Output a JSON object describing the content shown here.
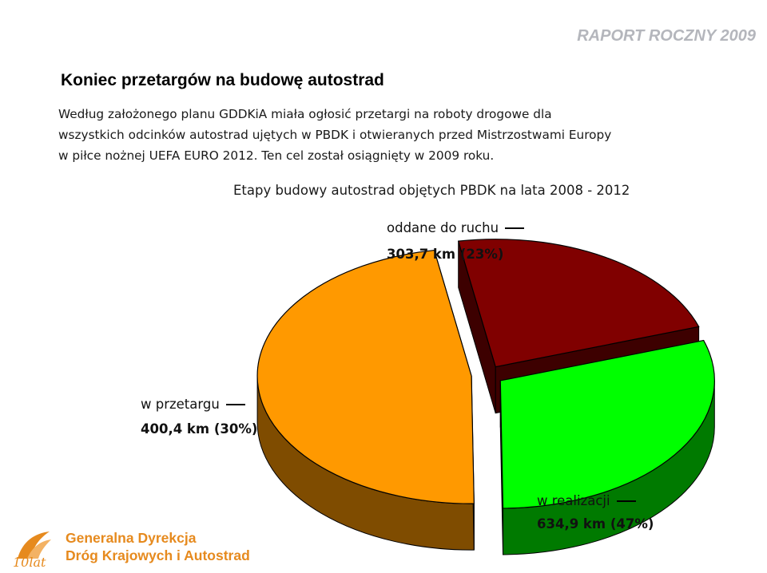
{
  "header": {
    "report_tag": "RAPORT ROCZNY 2009"
  },
  "heading": "Koniec przetargów na budowę autostrad",
  "paragraph_lines": [
    "Według założonego planu GDDKiA miała ogłosić przetargi na roboty drogowe dla",
    "wszystkich odcinków autostrad ujętych w PBDK i otwieranych przed Mistrzostwami Europy",
    "w piłce nożnej UEFA EURO 2012. Ten cel został osiągnięty w 2009 roku."
  ],
  "chart_data": {
    "type": "pie",
    "title": "Etapy budowy autostrad objętych PBDK na lata 2008 - 2012",
    "slices": [
      {
        "label": "oddane do ruchu",
        "value_text": "303,7 km (23%)",
        "km": 303.7,
        "percent": 23,
        "color": "#800000",
        "side_color": "#3d0000"
      },
      {
        "label": "w przetargu",
        "value_text": "400,4 km (30%)",
        "km": 400.4,
        "percent": 30,
        "color": "#00ff00",
        "side_color": "#007a00"
      },
      {
        "label": "w realizacji",
        "value_text": "634,9 km (47%)",
        "km": 634.9,
        "percent": 47,
        "color": "#ff9900",
        "side_color": "#7f4c00"
      }
    ],
    "style": "3d-exploded",
    "legend": "none"
  },
  "footer": {
    "logo_line1": "Generalna Dyrekcja",
    "logo_line2": "Dróg Krajowych i Autostrad",
    "logo_badge": "10lat",
    "brand_color": "#e68a1e"
  }
}
